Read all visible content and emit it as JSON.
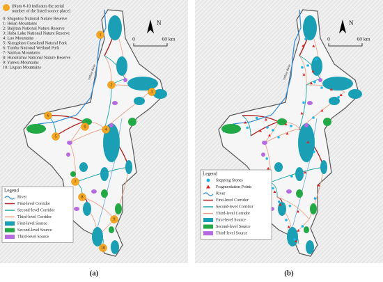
{
  "panel_a": {
    "note": [
      "(Num 0-10 indicates the serial",
      "number of the listed source place)"
    ],
    "sources": [
      "0: Shapotou National Nature Reserve",
      "1: Helan Mountains",
      "2: Baijitan National Nature Reserve",
      "3: Haba Lake National Nature Reserve",
      "4: Luo Mountains",
      "5: Xiangshan Grassland Natural Park",
      "6: Tianhu National Wetland Park",
      "7: Nanhua Mountains",
      "8: Huoshizhai National Nature Reserve",
      "9: Yunwu Mountains",
      "10: Liupan Mountains"
    ],
    "markers": [
      "0",
      "1",
      "2",
      "3",
      "4",
      "5",
      "6",
      "7",
      "8",
      "9",
      "10"
    ],
    "north": "N",
    "scale": [
      "0",
      "60 km"
    ],
    "river_label": "Yellow River",
    "legend": {
      "title": "Legend",
      "items": [
        "River",
        "First-level Corridor",
        "Second-level Corridor",
        "Third-level Corridor",
        "First-level Source",
        "Second-level Source",
        "Third-level Source"
      ]
    },
    "caption": "(a)"
  },
  "panel_b": {
    "north": "N",
    "scale": [
      "0",
      "60 km"
    ],
    "river_label": "Yellow River",
    "legend": {
      "title": "Legend",
      "items": [
        "Stepping Stones",
        "Fragmentation Points",
        "River",
        "First-level Corridor",
        "Second-level Corridor",
        "Third-level Corridor",
        "First-level Source",
        "Second-level Source",
        "Third-level Source"
      ]
    },
    "caption": "(b)"
  }
}
